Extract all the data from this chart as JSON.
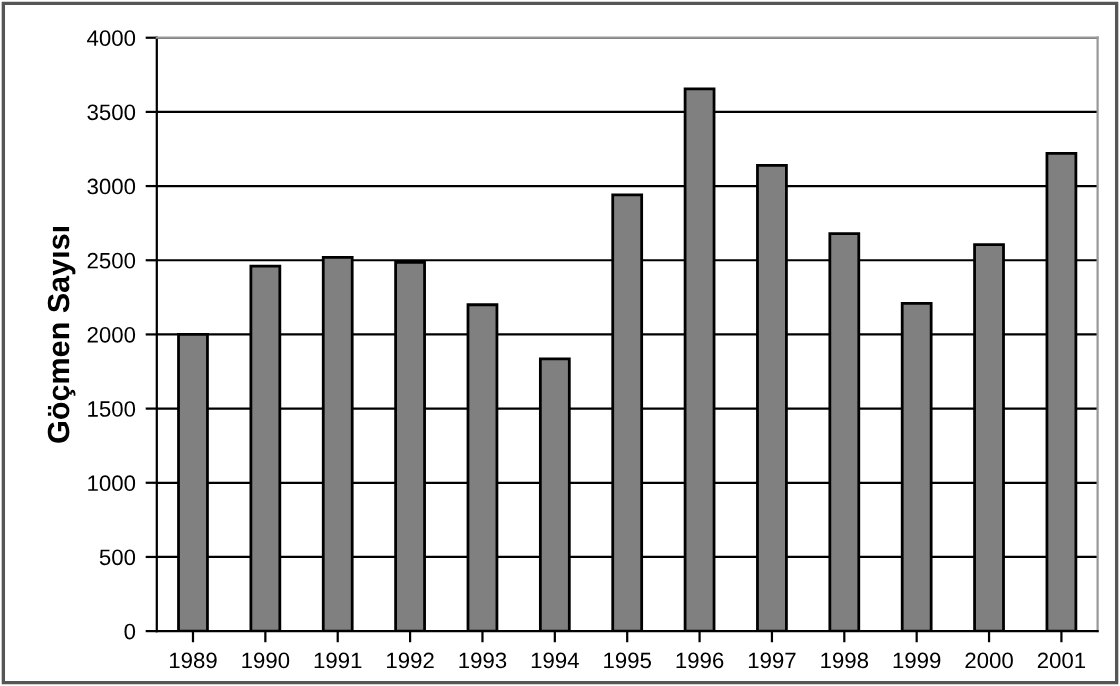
{
  "chart_data": {
    "type": "bar",
    "ylabel": "Göçmen Sayısı",
    "categories": [
      "1989",
      "1990",
      "1991",
      "1992",
      "1993",
      "1994",
      "1995",
      "1996",
      "1997",
      "1998",
      "1999",
      "2000",
      "2001"
    ],
    "values": [
      2000,
      2460,
      2520,
      2485,
      2200,
      1835,
      2940,
      3655,
      3140,
      2680,
      2210,
      2605,
      3220
    ],
    "color": "#808080",
    "ylim": [
      0,
      4000
    ],
    "yticks": [
      0,
      500,
      1000,
      1500,
      2000,
      2500,
      3000,
      3500,
      4000
    ],
    "grid": "y"
  }
}
